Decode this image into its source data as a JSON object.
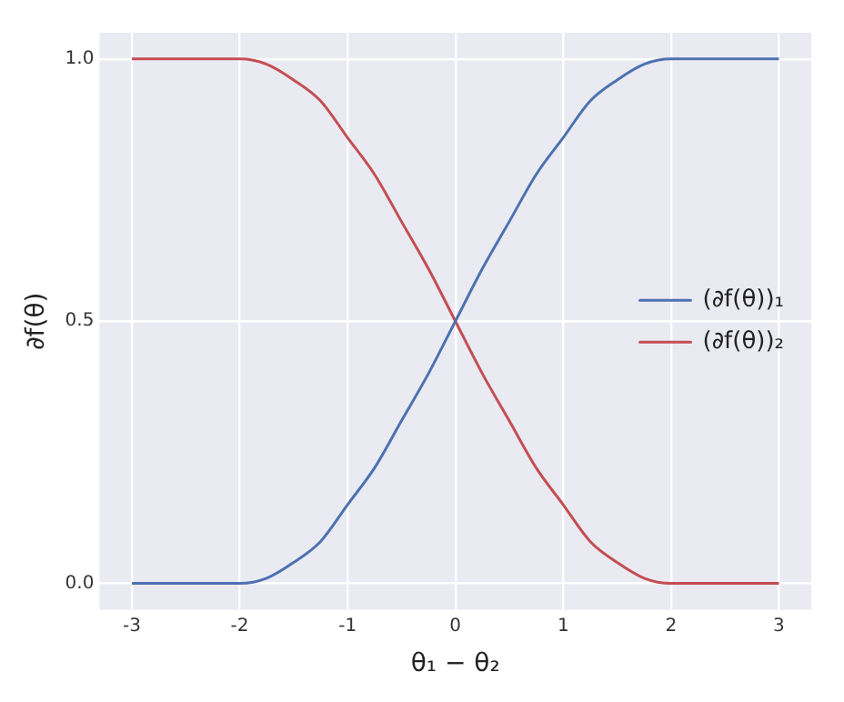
{
  "chart_data": {
    "type": "line",
    "xlabel": "θ₁ − θ₂",
    "ylabel": "∂f(θ)",
    "x": [
      -3,
      -2.5,
      -2,
      -1.75,
      -1.5,
      -1.25,
      -1,
      -0.75,
      -0.5,
      -0.25,
      0,
      0.25,
      0.5,
      0.75,
      1,
      1.25,
      1.5,
      1.75,
      2,
      2.5,
      3
    ],
    "series": [
      {
        "name": "(∂f(θ))₁",
        "color": "#4c72b0",
        "values": [
          0,
          0,
          0,
          0.01,
          0.04,
          0.08,
          0.15,
          0.22,
          0.31,
          0.4,
          0.5,
          0.6,
          0.69,
          0.78,
          0.85,
          0.92,
          0.96,
          0.99,
          1,
          1,
          1
        ]
      },
      {
        "name": "(∂f(θ))₂",
        "color": "#c44e52",
        "values": [
          1,
          1,
          1,
          0.99,
          0.96,
          0.92,
          0.85,
          0.78,
          0.69,
          0.6,
          0.5,
          0.4,
          0.31,
          0.22,
          0.15,
          0.08,
          0.04,
          0.01,
          0,
          0,
          0
        ]
      }
    ],
    "xlim": [
      -3.3,
      3.3
    ],
    "xticks": [
      -3,
      -2,
      -1,
      0,
      1,
      2,
      3
    ],
    "ylim": [
      -0.05,
      1.05
    ],
    "yticks": [
      {
        "value": 0,
        "label": "0.0"
      },
      {
        "value": 0.5,
        "label": "0.5"
      },
      {
        "value": 1,
        "label": "1.0"
      }
    ],
    "grid": true,
    "legend": "right",
    "marker": "none",
    "line_style": "solid"
  }
}
